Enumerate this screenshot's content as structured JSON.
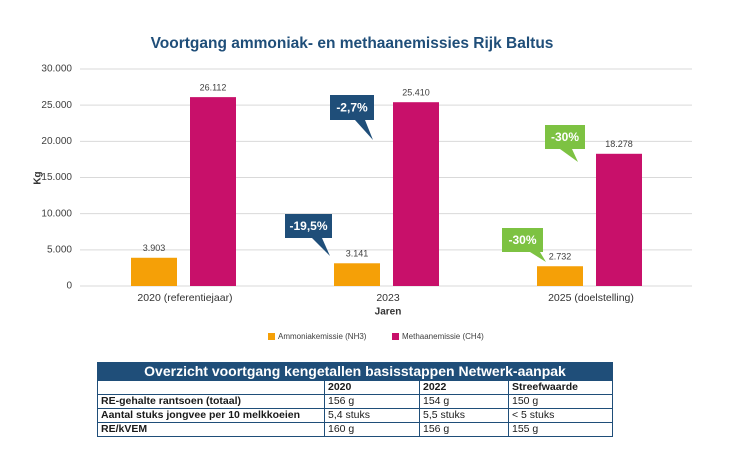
{
  "chart_data": {
    "type": "bar",
    "title": "Voortgang ammoniak- en methaanemissies Rijk Baltus",
    "x_label": "Jaren",
    "y_label": "Kg",
    "categories": [
      "2020 (referentiejaar)",
      "2023",
      "2025 (doelstelling)"
    ],
    "series": [
      {
        "name": "Ammoniakemissie (NH3)",
        "color": "#f5a007",
        "values": [
          3903,
          3141,
          2732
        ],
        "value_labels": [
          "3.903",
          "3.141",
          "2.732"
        ]
      },
      {
        "name": "Methaanemissie (CH4)",
        "color": "#c8106a",
        "values": [
          26112,
          25410,
          18278
        ],
        "value_labels": [
          "26.112",
          "25.410",
          "18.278"
        ]
      }
    ],
    "ylim": [
      0,
      30000
    ],
    "yticks": [
      0,
      {
        "value": 5000,
        "label": "5.000"
      },
      {
        "value": 10000,
        "label": "10.000"
      },
      {
        "value": 15000,
        "label": "15.000"
      },
      {
        "value": 20000,
        "label": "20.000"
      },
      {
        "value": 25000,
        "label": "25.000"
      },
      {
        "value": 30000,
        "label": "30.000"
      }
    ],
    "grid": true,
    "annotations": [
      "-19,5%",
      "-2,7%",
      "-30%",
      "-30%"
    ]
  },
  "table": {
    "title": "Overzicht voortgang kengetallen basisstappen Netwerk-aanpak",
    "header": [
      "2020",
      "2022",
      "Streefwaarde"
    ],
    "rows": [
      [
        "RE-gehalte rantsoen (totaal)",
        "156 g",
        "154 g",
        "150 g"
      ],
      [
        "Aantal stuks jongvee per 10 melkkoeien",
        "5,4 stuks",
        "5,5 stuks",
        "< 5 stuks"
      ],
      [
        "RE/kVEM",
        "160 g",
        "156 g",
        "155 g"
      ]
    ]
  }
}
